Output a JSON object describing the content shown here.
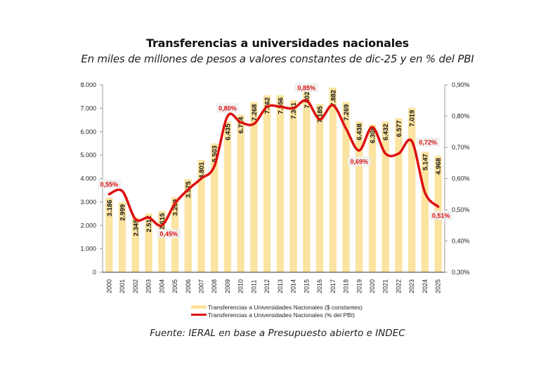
{
  "chart_data": {
    "type": "bar",
    "title": "Transferencias a universidades nacionales",
    "subtitle": "En miles de millones de pesos a valores constantes de dic-25 y en % del PBI",
    "source": "Fuente: IERAL en base a Presupuesto abierto e INDEC",
    "categories": [
      "2000",
      "2001",
      "2002",
      "2003",
      "2004",
      "2005",
      "2006",
      "2007",
      "2008",
      "2009",
      "2010",
      "2011",
      "2012",
      "2013",
      "2014",
      "2015",
      "2016",
      "2017",
      "2018",
      "2019",
      "2020",
      "2021",
      "2022",
      "2023",
      "2024",
      "2025"
    ],
    "series": [
      {
        "name": "Transferencias a Universidades Nacionales ($ constantes)",
        "type": "bar",
        "axis": "left",
        "color": "#fbe3a0",
        "values": [
          3186,
          2999,
          2345,
          2512,
          2615,
          3209,
          3975,
          4801,
          5503,
          6435,
          6724,
          7268,
          7562,
          7556,
          7341,
          7802,
          7185,
          7882,
          7269,
          6438,
          6308,
          6432,
          6577,
          7019,
          5147,
          4968
        ],
        "labels": [
          "3.186",
          "2.999",
          "2.345",
          "2.512",
          "2.615",
          "3.209",
          "3.975",
          "4.801",
          "5.503",
          "6.435",
          "6.724",
          "7.268",
          "7.562",
          "7.556",
          "7.341",
          "7.802",
          "7.185",
          "7.882",
          "7.269",
          "6.438",
          "6.308",
          "6.432",
          "6.577",
          "7.019",
          "5.147",
          "4.968"
        ]
      },
      {
        "name": "Transferencias a Universidades Nacionales (% del PBI)",
        "type": "line",
        "axis": "right",
        "color": "#dd1111",
        "values": [
          0.55,
          0.56,
          0.47,
          0.475,
          0.45,
          0.52,
          0.565,
          0.6,
          0.64,
          0.8,
          0.78,
          0.775,
          0.83,
          0.83,
          0.825,
          0.85,
          0.79,
          0.835,
          0.76,
          0.69,
          0.765,
          0.68,
          0.68,
          0.72,
          0.555,
          0.51
        ]
      }
    ],
    "annotations": [
      {
        "index": 0,
        "text": "0,55%"
      },
      {
        "index": 4,
        "text": "0,45%"
      },
      {
        "index": 9,
        "text": "0,80%"
      },
      {
        "index": 15,
        "text": "0,85%"
      },
      {
        "index": 19,
        "text": "0,69%"
      },
      {
        "index": 23,
        "text": "0,72%"
      },
      {
        "index": 25,
        "text": "0,51%"
      }
    ],
    "y_left": {
      "min": 0,
      "max": 8000,
      "ticks": [
        0,
        1000,
        2000,
        3000,
        4000,
        5000,
        6000,
        7000,
        8000
      ],
      "tick_labels": [
        "0",
        "1.000",
        "2.000",
        "3.000",
        "4.000",
        "5.000",
        "6.000",
        "7.000",
        "8.000"
      ]
    },
    "y_right": {
      "min": 0.3,
      "max": 0.9,
      "ticks": [
        0.3,
        0.4,
        0.5,
        0.6,
        0.7,
        0.8,
        0.9
      ],
      "tick_labels": [
        "0,30%",
        "0,40%",
        "0,50%",
        "0,60%",
        "0,70%",
        "0,80%",
        "0,90%"
      ]
    },
    "xlabel": "",
    "ylabel": "",
    "grid": false,
    "legend_position": "bottom"
  }
}
